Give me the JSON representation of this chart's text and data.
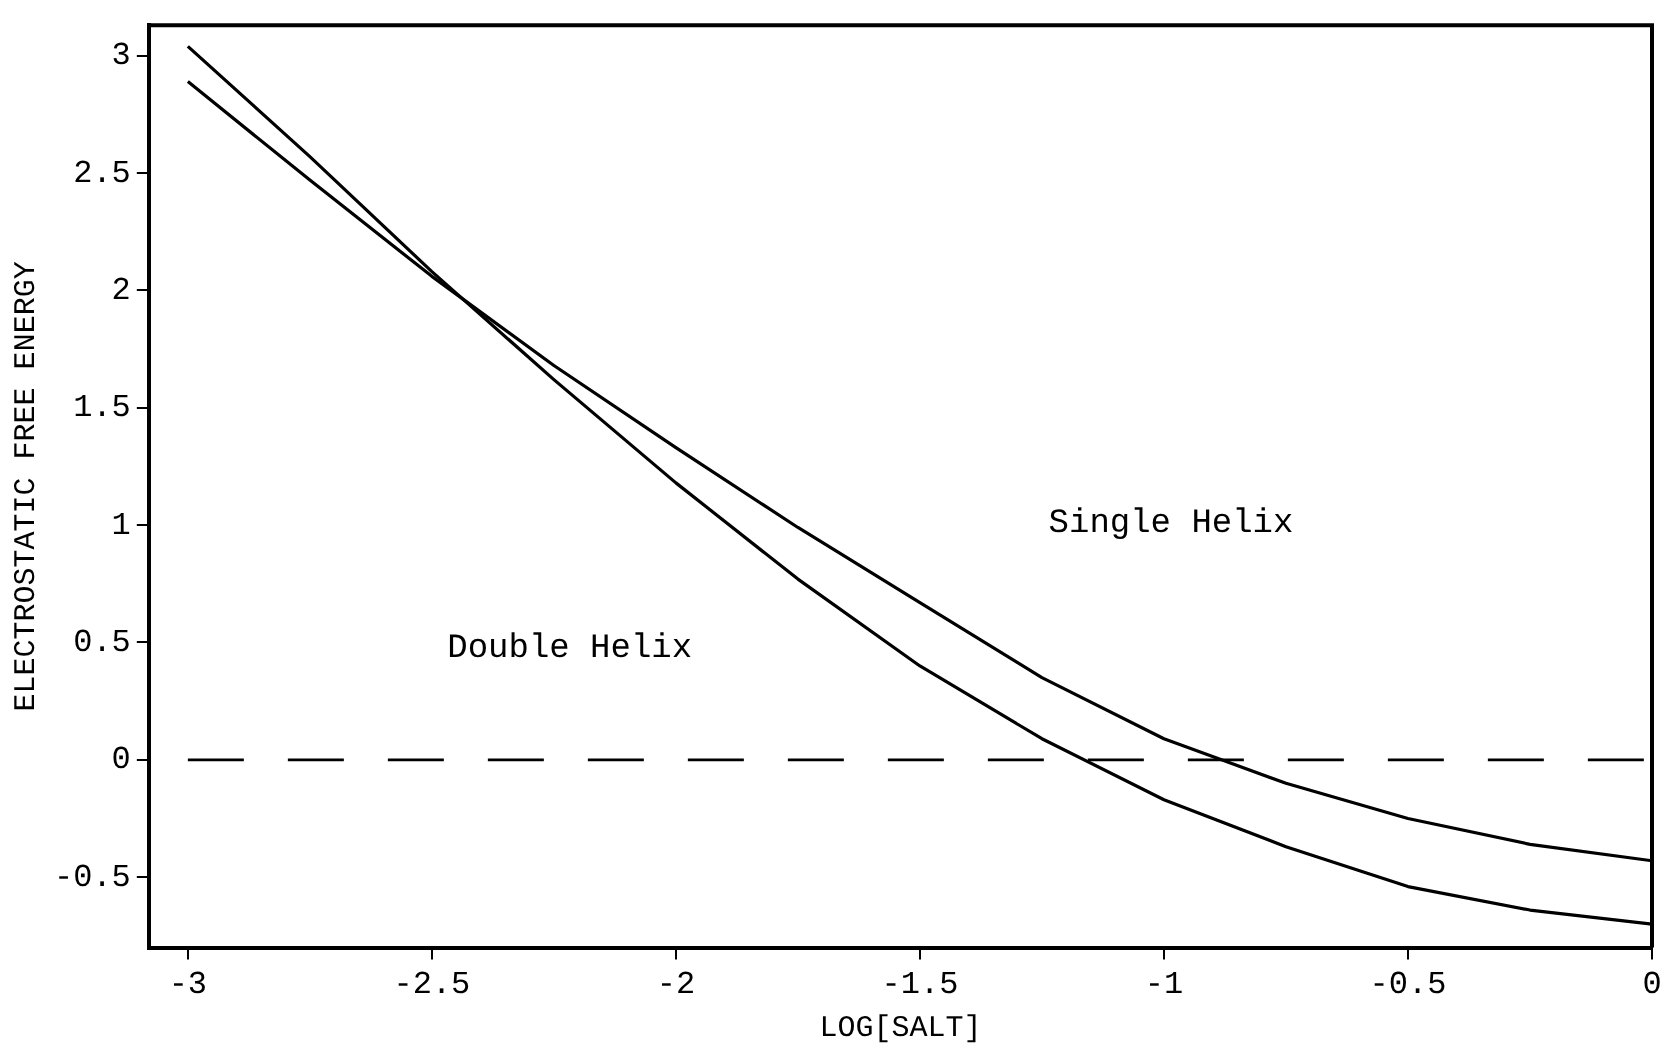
{
  "chart_data": {
    "type": "line",
    "xlabel": "LOG[SALT]",
    "ylabel": "ELECTROSTATIC FREE ENERGY",
    "x": [
      -3,
      -2.75,
      -2.5,
      -2.25,
      -2,
      -1.75,
      -1.5,
      -1.25,
      -1,
      -0.75,
      -0.5,
      -0.25,
      0
    ],
    "series": [
      {
        "color": "#000000",
        "values": [
          3.04,
          2.57,
          2.08,
          1.62,
          1.18,
          0.77,
          0.4,
          0.09,
          -0.17,
          -0.37,
          -0.54,
          -0.64,
          -0.7
        ]
      },
      {
        "color": "#000000",
        "values": [
          2.89,
          2.47,
          2.06,
          1.68,
          1.33,
          0.99,
          0.67,
          0.35,
          0.09,
          -0.1,
          -0.25,
          -0.36,
          -0.43
        ]
      }
    ],
    "xlim": [
      -3.08,
      0
    ],
    "ylim": [
      -0.8,
      3.13
    ],
    "xticks": [
      -3,
      -2.5,
      -2,
      -1.5,
      -1,
      -0.5,
      0
    ],
    "yticks": [
      -0.5,
      0,
      0.5,
      1,
      1.5,
      2,
      2.5,
      3
    ],
    "ref_lines": [
      {
        "axis": "y",
        "value": 0,
        "color": "#000000",
        "line_style": "dashed"
      }
    ],
    "annotations": [
      "Double Helix",
      "Single Helix"
    ],
    "grid": false,
    "legend": false,
    "marker": "none",
    "line_style": "solid"
  }
}
